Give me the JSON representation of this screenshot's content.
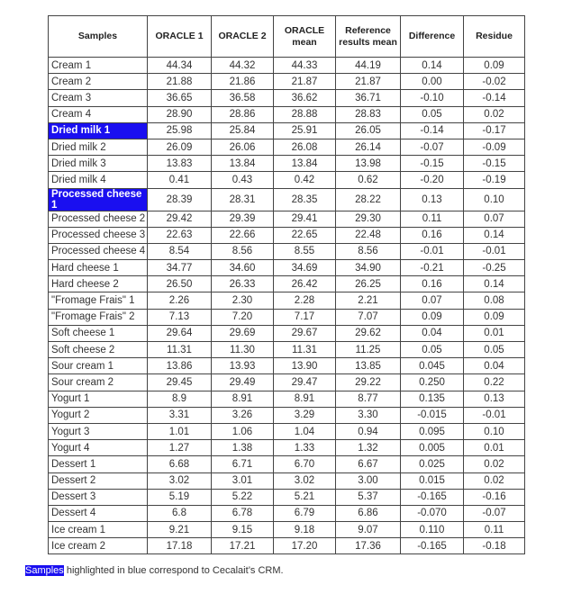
{
  "table": {
    "headers": [
      "Samples",
      "ORACLE 1",
      "ORACLE 2",
      "ORACLE mean",
      "Reference results mean",
      "Difference",
      "Residue"
    ],
    "highlight_color": "#1a0ff0",
    "rows": [
      {
        "sample": "Cream 1",
        "values": [
          "44.34",
          "44.32",
          "44.33",
          "44.19",
          "0.14",
          "0.09"
        ],
        "highlighted": false
      },
      {
        "sample": "Cream 2",
        "values": [
          "21.88",
          "21.86",
          "21.87",
          "21.87",
          "0.00",
          "-0.02"
        ],
        "highlighted": false
      },
      {
        "sample": "Cream 3",
        "values": [
          "36.65",
          "36.58",
          "36.62",
          "36.71",
          "-0.10",
          "-0.14"
        ],
        "highlighted": false
      },
      {
        "sample": "Cream 4",
        "values": [
          "28.90",
          "28.86",
          "28.88",
          "28.83",
          "0.05",
          "0.02"
        ],
        "highlighted": false
      },
      {
        "sample": "Dried milk 1",
        "values": [
          "25.98",
          "25.84",
          "25.91",
          "26.05",
          "-0.14",
          "-0.17"
        ],
        "highlighted": true
      },
      {
        "sample": "Dried milk 2",
        "values": [
          "26.09",
          "26.06",
          "26.08",
          "26.14",
          "-0.07",
          "-0.09"
        ],
        "highlighted": false
      },
      {
        "sample": "Dried milk 3",
        "values": [
          "13.83",
          "13.84",
          "13.84",
          "13.98",
          "-0.15",
          "-0.15"
        ],
        "highlighted": false
      },
      {
        "sample": "Dried milk 4",
        "values": [
          "0.41",
          "0.43",
          "0.42",
          "0.62",
          "-0.20",
          "-0.19"
        ],
        "highlighted": false
      },
      {
        "sample": "Processed cheese 1",
        "values": [
          "28.39",
          "28.31",
          "28.35",
          "28.22",
          "0.13",
          "0.10"
        ],
        "highlighted": true
      },
      {
        "sample": "Processed cheese 2",
        "values": [
          "29.42",
          "29.39",
          "29.41",
          "29.30",
          "0.11",
          "0.07"
        ],
        "highlighted": false
      },
      {
        "sample": "Processed cheese 3",
        "values": [
          "22.63",
          "22.66",
          "22.65",
          "22.48",
          "0.16",
          "0.14"
        ],
        "highlighted": false
      },
      {
        "sample": "Processed cheese 4",
        "values": [
          "8.54",
          "8.56",
          "8.55",
          "8.56",
          "-0.01",
          "-0.01"
        ],
        "highlighted": false
      },
      {
        "sample": "Hard cheese 1",
        "values": [
          "34.77",
          "34.60",
          "34.69",
          "34.90",
          "-0.21",
          "-0.25"
        ],
        "highlighted": false
      },
      {
        "sample": "Hard cheese 2",
        "values": [
          "26.50",
          "26.33",
          "26.42",
          "26.25",
          "0.16",
          "0.14"
        ],
        "highlighted": false
      },
      {
        "sample": "\"Fromage Frais\" 1",
        "values": [
          "2.26",
          "2.30",
          "2.28",
          "2.21",
          "0.07",
          "0.08"
        ],
        "highlighted": false
      },
      {
        "sample": "\"Fromage Frais\" 2",
        "values": [
          "7.13",
          "7.20",
          "7.17",
          "7.07",
          "0.09",
          "0.09"
        ],
        "highlighted": false
      },
      {
        "sample": "Soft cheese 1",
        "values": [
          "29.64",
          "29.69",
          "29.67",
          "29.62",
          "0.04",
          "0.01"
        ],
        "highlighted": false
      },
      {
        "sample": "Soft cheese 2",
        "values": [
          "11.31",
          "11.30",
          "11.31",
          "11.25",
          "0.05",
          "0.05"
        ],
        "highlighted": false
      },
      {
        "sample": "Sour cream 1",
        "values": [
          "13.86",
          "13.93",
          "13.90",
          "13.85",
          "0.045",
          "0.04"
        ],
        "highlighted": false
      },
      {
        "sample": "Sour cream 2",
        "values": [
          "29.45",
          "29.49",
          "29.47",
          "29.22",
          "0.250",
          "0.22"
        ],
        "highlighted": false
      },
      {
        "sample": "Yogurt 1",
        "values": [
          "8.9",
          "8.91",
          "8.91",
          "8.77",
          "0.135",
          "0.13"
        ],
        "highlighted": false
      },
      {
        "sample": "Yogurt 2",
        "values": [
          "3.31",
          "3.26",
          "3.29",
          "3.30",
          "-0.015",
          "-0.01"
        ],
        "highlighted": false
      },
      {
        "sample": "Yogurt 3",
        "values": [
          "1.01",
          "1.06",
          "1.04",
          "0.94",
          "0.095",
          "0.10"
        ],
        "highlighted": false
      },
      {
        "sample": "Yogurt 4",
        "values": [
          "1.27",
          "1.38",
          "1.33",
          "1.32",
          "0.005",
          "0.01"
        ],
        "highlighted": false
      },
      {
        "sample": "Dessert 1",
        "values": [
          "6.68",
          "6.71",
          "6.70",
          "6.67",
          "0.025",
          "0.02"
        ],
        "highlighted": false
      },
      {
        "sample": "Dessert 2",
        "values": [
          "3.02",
          "3.01",
          "3.02",
          "3.00",
          "0.015",
          "0.02"
        ],
        "highlighted": false
      },
      {
        "sample": "Dessert 3",
        "values": [
          "5.19",
          "5.22",
          "5.21",
          "5.37",
          "-0.165",
          "-0.16"
        ],
        "highlighted": false
      },
      {
        "sample": "Dessert 4",
        "values": [
          "6.8",
          "6.78",
          "6.79",
          "6.86",
          "-0.070",
          "-0.07"
        ],
        "highlighted": false
      },
      {
        "sample": "Ice cream 1",
        "values": [
          "9.21",
          "9.15",
          "9.18",
          "9.07",
          "0.110",
          "0.11"
        ],
        "highlighted": false
      },
      {
        "sample": "Ice cream 2",
        "values": [
          "17.18",
          "17.21",
          "17.20",
          "17.36",
          "-0.165",
          "-0.18"
        ],
        "highlighted": false
      }
    ]
  },
  "footnote": {
    "highlighted_word": "Samples",
    "rest": " highlighted in blue correspond to Cecalait’s CRM."
  }
}
